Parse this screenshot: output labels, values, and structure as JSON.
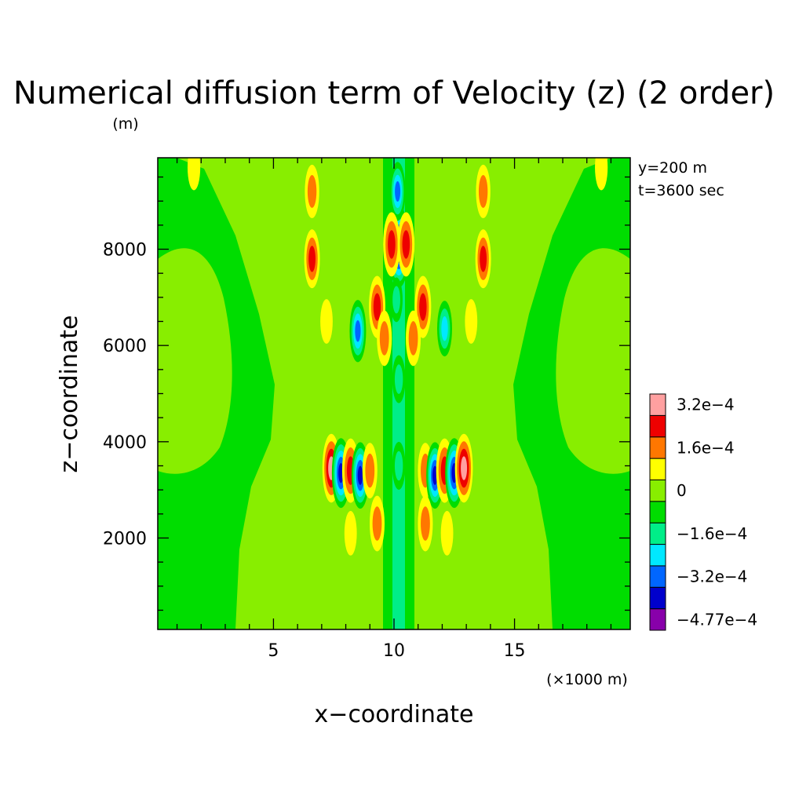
{
  "chart_data": {
    "type": "heatmap",
    "title": "Numerical diffusion term of Velocity (z) (2 order)",
    "unit_label": "(m)",
    "xlabel": "x−coordinate",
    "ylabel": "z−coordinate",
    "x_unit_note": "(×1000 m)",
    "xlim": [
      0.2,
      19.8
    ],
    "ylim": [
      100,
      9900
    ],
    "x_ticks": [
      5,
      10,
      15
    ],
    "x_tick_labels": [
      "5",
      "10",
      "15"
    ],
    "y_ticks": [
      2000,
      4000,
      6000,
      8000
    ],
    "y_tick_labels": [
      "2000",
      "4000",
      "6000",
      "8000"
    ],
    "annotations": [
      "y=200 m",
      "t=3600 sec"
    ],
    "colorbar": {
      "levels": [
        {
          "color": "#8800aa"
        },
        {
          "color": "#0000cc"
        },
        {
          "color": "#0066ff"
        },
        {
          "color": "#00e8ff"
        },
        {
          "color": "#00ee88"
        },
        {
          "color": "#00dd00"
        },
        {
          "color": "#88ee00"
        },
        {
          "color": "#ffff00"
        },
        {
          "color": "#ff7700"
        },
        {
          "color": "#ee0000"
        },
        {
          "color": "#ffa0a0"
        }
      ],
      "tick_labels": [
        "−4.77e−4",
        "−3.2e−4",
        "−1.6e−4",
        "0",
        "1.6e−4",
        "3.2e−4"
      ],
      "tick_level_index": [
        0,
        2,
        4,
        6,
        8,
        10
      ]
    },
    "features": [
      {
        "x": 7.4,
        "z": 3450,
        "v": 3.4
      },
      {
        "x": 7.8,
        "z": 3350,
        "v": -3.5
      },
      {
        "x": 8.2,
        "z": 3400,
        "v": 3.0
      },
      {
        "x": 8.6,
        "z": 3300,
        "v": -3.2
      },
      {
        "x": 9.0,
        "z": 3400,
        "v": 2.2
      },
      {
        "x": 11.3,
        "z": 3400,
        "v": 2.2
      },
      {
        "x": 11.7,
        "z": 3300,
        "v": -3.2
      },
      {
        "x": 12.1,
        "z": 3400,
        "v": 3.0
      },
      {
        "x": 12.5,
        "z": 3350,
        "v": -3.5
      },
      {
        "x": 12.9,
        "z": 3450,
        "v": 3.4
      },
      {
        "x": 10.2,
        "z": 8050,
        "v": -4.6
      },
      {
        "x": 10.15,
        "z": 9200,
        "v": -2.5
      },
      {
        "x": 10.2,
        "z": 5300,
        "v": -1.5
      },
      {
        "x": 9.9,
        "z": 8100,
        "v": 3.0
      },
      {
        "x": 10.5,
        "z": 8100,
        "v": 3.0
      },
      {
        "x": 9.3,
        "z": 6800,
        "v": 2.8
      },
      {
        "x": 11.2,
        "z": 6800,
        "v": 2.8
      },
      {
        "x": 9.6,
        "z": 6150,
        "v": 2.2
      },
      {
        "x": 10.8,
        "z": 6150,
        "v": 2.2
      },
      {
        "x": 8.5,
        "z": 6300,
        "v": -2.8
      },
      {
        "x": 12.1,
        "z": 6350,
        "v": -2.2
      },
      {
        "x": 6.6,
        "z": 7800,
        "v": 2.5
      },
      {
        "x": 13.7,
        "z": 7800,
        "v": 2.5
      },
      {
        "x": 6.6,
        "z": 9200,
        "v": 2.0
      },
      {
        "x": 13.7,
        "z": 9200,
        "v": 2.0
      },
      {
        "x": 9.3,
        "z": 2300,
        "v": 2.2
      },
      {
        "x": 11.3,
        "z": 2300,
        "v": 2.2
      },
      {
        "x": 10.1,
        "z": 6950,
        "v": -1.2
      },
      {
        "x": 10.2,
        "z": 3500,
        "v": -1.5
      },
      {
        "x": 1.7,
        "z": 9700,
        "v": 1.3
      },
      {
        "x": 18.6,
        "z": 9700,
        "v": 1.3
      },
      {
        "x": 7.2,
        "z": 6500,
        "v": 1.2
      },
      {
        "x": 13.2,
        "z": 6500,
        "v": 1.2
      },
      {
        "x": 8.2,
        "z": 2100,
        "v": 1.2
      },
      {
        "x": 12.2,
        "z": 2100,
        "v": 1.2
      }
    ]
  }
}
